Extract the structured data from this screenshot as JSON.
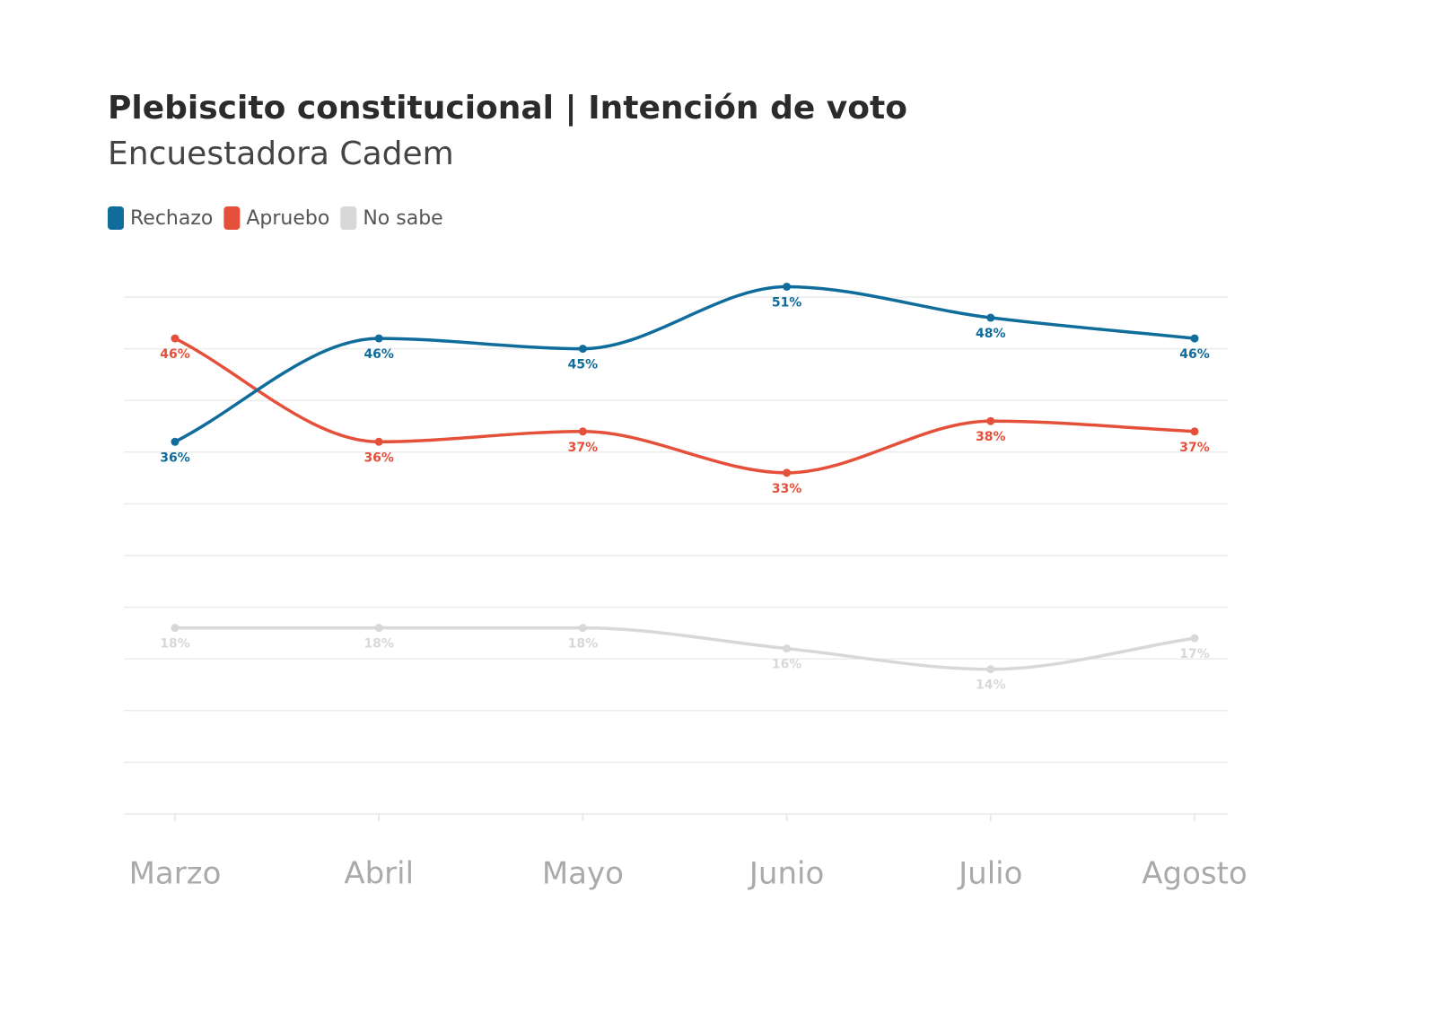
{
  "chart_data": {
    "type": "line",
    "title": "Plebiscito constitucional | Intención de voto",
    "subtitle": "Encuestadora Cadem",
    "categories": [
      "Marzo",
      "Abril",
      "Mayo",
      "Junio",
      "Julio",
      "Agosto"
    ],
    "series": [
      {
        "name": "Rechazo",
        "color": "#0f6c9b",
        "values": [
          36,
          46,
          45,
          51,
          48,
          46
        ],
        "value_labels": [
          "36%",
          "46%",
          "45%",
          "51%",
          "48%",
          "46%"
        ]
      },
      {
        "name": "Apruebo",
        "color": "#e5503a",
        "values": [
          46,
          36,
          37,
          33,
          38,
          37
        ],
        "value_labels": [
          "46%",
          "36%",
          "37%",
          "33%",
          "38%",
          "37%"
        ]
      },
      {
        "name": "No sabe",
        "color": "#d8d8d8",
        "values": [
          18,
          18,
          18,
          16,
          14,
          17
        ],
        "value_labels": [
          "18%",
          "18%",
          "18%",
          "16%",
          "14%",
          "17%"
        ]
      }
    ],
    "ylim": [
      0,
      50
    ],
    "gridlines": [
      0,
      5,
      10,
      15,
      20,
      25,
      30,
      35,
      40,
      45,
      50
    ],
    "grid": true
  }
}
